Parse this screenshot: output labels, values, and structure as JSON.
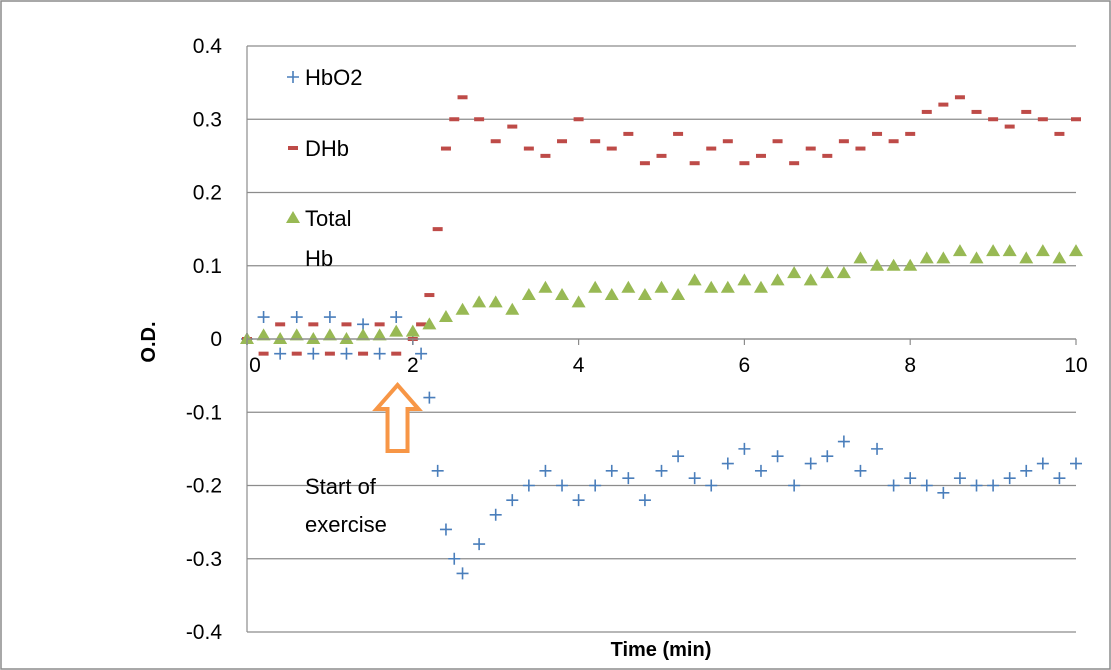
{
  "chart_data": {
    "type": "scatter",
    "title": "",
    "xlabel": "Time (min)",
    "ylabel": "O.D.",
    "xlim": [
      0,
      10
    ],
    "ylim": [
      -0.4,
      0.4
    ],
    "x_ticks": [
      0,
      2,
      4,
      6,
      8,
      10
    ],
    "y_ticks": [
      0.4,
      0.3,
      0.2,
      0.1,
      0,
      -0.1,
      -0.2,
      -0.3,
      -0.4
    ],
    "grid": "horizontal",
    "legend_position": "top-left",
    "series": [
      {
        "name": "HbO2",
        "marker": "plus",
        "color": "#4a7ebb",
        "x": [
          0,
          0.2,
          0.4,
          0.6,
          0.8,
          1.0,
          1.2,
          1.4,
          1.6,
          1.8,
          2.0,
          2.1,
          2.2,
          2.3,
          2.4,
          2.5,
          2.6,
          2.8,
          3.0,
          3.2,
          3.4,
          3.6,
          3.8,
          4.0,
          4.2,
          4.4,
          4.6,
          4.8,
          5.0,
          5.2,
          5.4,
          5.6,
          5.8,
          6.0,
          6.2,
          6.4,
          6.6,
          6.8,
          7.0,
          7.2,
          7.4,
          7.6,
          7.8,
          8.0,
          8.2,
          8.4,
          8.6,
          8.8,
          9.0,
          9.2,
          9.4,
          9.6,
          9.8,
          10.0
        ],
        "y": [
          0.0,
          0.03,
          -0.02,
          0.03,
          -0.02,
          0.03,
          -0.02,
          0.02,
          -0.02,
          0.03,
          0.0,
          -0.02,
          -0.08,
          -0.18,
          -0.26,
          -0.3,
          -0.32,
          -0.28,
          -0.24,
          -0.22,
          -0.2,
          -0.18,
          -0.2,
          -0.22,
          -0.2,
          -0.18,
          -0.19,
          -0.22,
          -0.18,
          -0.16,
          -0.19,
          -0.2,
          -0.17,
          -0.15,
          -0.18,
          -0.16,
          -0.2,
          -0.17,
          -0.16,
          -0.14,
          -0.18,
          -0.15,
          -0.2,
          -0.19,
          -0.2,
          -0.21,
          -0.19,
          -0.2,
          -0.2,
          -0.19,
          -0.18,
          -0.17,
          -0.19,
          -0.17
        ]
      },
      {
        "name": "DHb",
        "marker": "dash",
        "color": "#be4b48",
        "x": [
          0,
          0.2,
          0.4,
          0.6,
          0.8,
          1.0,
          1.2,
          1.4,
          1.6,
          1.8,
          2.0,
          2.1,
          2.2,
          2.3,
          2.4,
          2.5,
          2.6,
          2.8,
          3.0,
          3.2,
          3.4,
          3.6,
          3.8,
          4.0,
          4.2,
          4.4,
          4.6,
          4.8,
          5.0,
          5.2,
          5.4,
          5.6,
          5.8,
          6.0,
          6.2,
          6.4,
          6.6,
          6.8,
          7.0,
          7.2,
          7.4,
          7.6,
          7.8,
          8.0,
          8.2,
          8.4,
          8.6,
          8.8,
          9.0,
          9.2,
          9.4,
          9.6,
          9.8,
          10.0
        ],
        "y": [
          0.0,
          -0.02,
          0.02,
          -0.02,
          0.02,
          -0.02,
          0.02,
          -0.02,
          0.02,
          -0.02,
          0.0,
          0.02,
          0.06,
          0.15,
          0.26,
          0.3,
          0.33,
          0.3,
          0.27,
          0.29,
          0.26,
          0.25,
          0.27,
          0.3,
          0.27,
          0.26,
          0.28,
          0.24,
          0.25,
          0.28,
          0.24,
          0.26,
          0.27,
          0.24,
          0.25,
          0.27,
          0.24,
          0.26,
          0.25,
          0.27,
          0.26,
          0.28,
          0.27,
          0.28,
          0.31,
          0.32,
          0.33,
          0.31,
          0.3,
          0.29,
          0.31,
          0.3,
          0.28,
          0.3
        ]
      },
      {
        "name": "Total Hb",
        "marker": "triangle",
        "color": "#98b954",
        "x": [
          0,
          0.2,
          0.4,
          0.6,
          0.8,
          1.0,
          1.2,
          1.4,
          1.6,
          1.8,
          2.0,
          2.2,
          2.4,
          2.6,
          2.8,
          3.0,
          3.2,
          3.4,
          3.6,
          3.8,
          4.0,
          4.2,
          4.4,
          4.6,
          4.8,
          5.0,
          5.2,
          5.4,
          5.6,
          5.8,
          6.0,
          6.2,
          6.4,
          6.6,
          6.8,
          7.0,
          7.2,
          7.4,
          7.6,
          7.8,
          8.0,
          8.2,
          8.4,
          8.6,
          8.8,
          9.0,
          9.2,
          9.4,
          9.6,
          9.8,
          10.0
        ],
        "y": [
          0.0,
          0.005,
          0.0,
          0.005,
          0.0,
          0.005,
          0.0,
          0.005,
          0.005,
          0.01,
          0.01,
          0.02,
          0.03,
          0.04,
          0.05,
          0.05,
          0.04,
          0.06,
          0.07,
          0.06,
          0.05,
          0.07,
          0.06,
          0.07,
          0.06,
          0.07,
          0.06,
          0.08,
          0.07,
          0.07,
          0.08,
          0.07,
          0.08,
          0.09,
          0.08,
          0.09,
          0.09,
          0.11,
          0.1,
          0.1,
          0.1,
          0.11,
          0.11,
          0.12,
          0.11,
          0.12,
          0.12,
          0.11,
          0.12,
          0.11,
          0.12
        ]
      }
    ],
    "legend": [
      {
        "label_lines": [
          "HbO2"
        ],
        "marker": "plus",
        "color": "#4a7ebb"
      },
      {
        "label_lines": [
          "DHb"
        ],
        "marker": "dash",
        "color": "#be4b48"
      },
      {
        "label_lines": [
          "Total",
          "Hb"
        ],
        "marker": "triangle",
        "color": "#98b954"
      }
    ],
    "annotation": {
      "lines": [
        "Start  of",
        "exercise"
      ],
      "arrow_x": 2.25,
      "arrow_direction": "up",
      "arrow_color": "#f79646"
    }
  }
}
